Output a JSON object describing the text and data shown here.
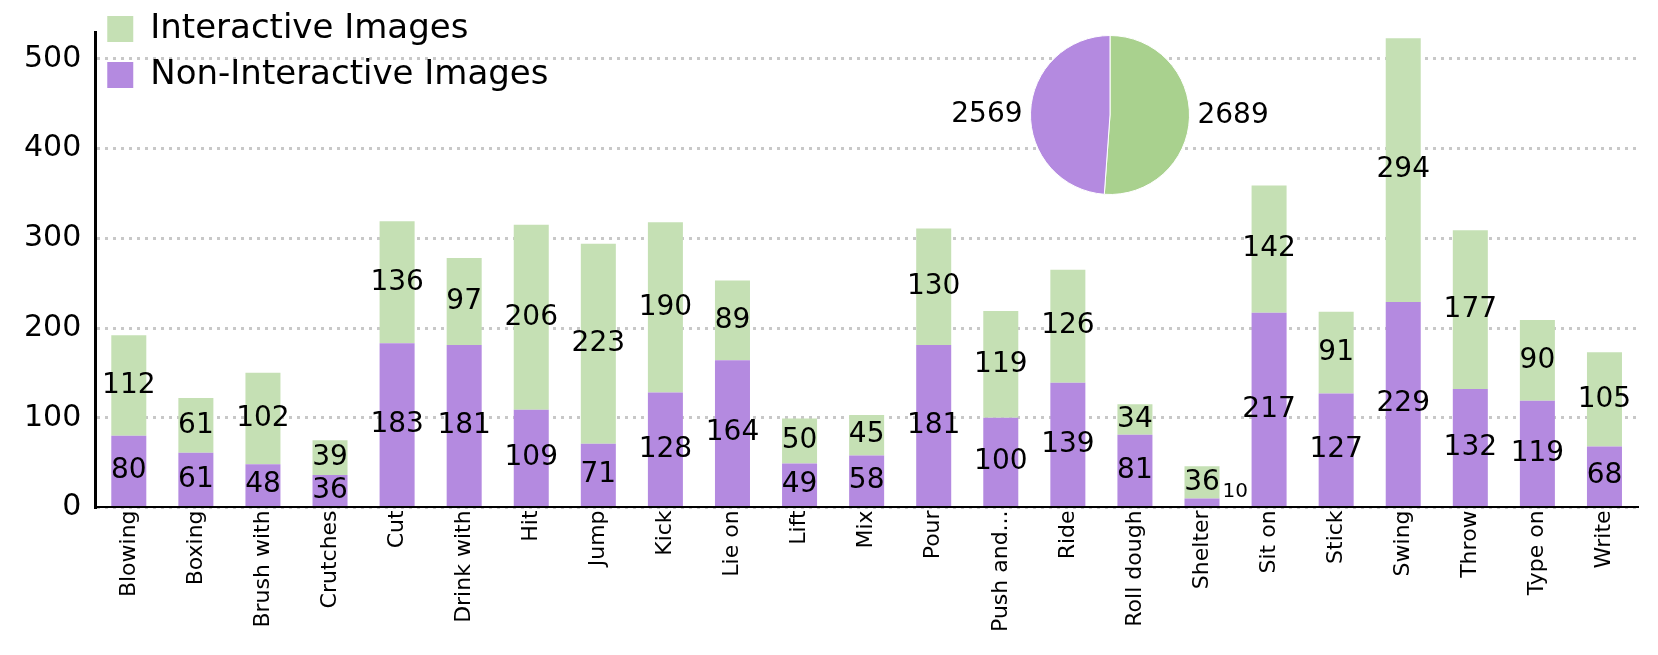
{
  "chart_data": [
    {
      "type": "bar",
      "stacked": true,
      "categories": [
        "Blowing",
        "Boxing",
        "Brush with",
        "Crutches",
        "Cut",
        "Drink with",
        "Hit",
        "Jump",
        "Kick",
        "Lie on",
        "Lift",
        "Mix",
        "Pour",
        "Push and...",
        "Ride",
        "Roll dough",
        "Shelter",
        "Sit on",
        "Stick",
        "Swing",
        "Throw",
        "Type on",
        "Write"
      ],
      "series": [
        {
          "name": "Non-Interactive Images",
          "color": "#b48ae0",
          "values": [
            80,
            61,
            48,
            36,
            183,
            181,
            109,
            71,
            128,
            164,
            49,
            58,
            181,
            100,
            139,
            81,
            10,
            217,
            127,
            229,
            132,
            119,
            68
          ]
        },
        {
          "name": "Interactive Images",
          "color": "#c5e0b4",
          "values": [
            112,
            61,
            102,
            39,
            136,
            97,
            206,
            223,
            190,
            89,
            50,
            45,
            130,
            119,
            126,
            34,
            36,
            142,
            91,
            294,
            177,
            90,
            105
          ]
        }
      ],
      "ylim": [
        0,
        530
      ],
      "yticks": [
        0,
        100,
        200,
        300,
        400,
        500
      ],
      "grid": "y",
      "legend": "top left",
      "data_labels": true
    },
    {
      "type": "pie",
      "categories": [
        null,
        null
      ],
      "values": [
        2689,
        2569
      ],
      "colors": [
        "#a9d18e",
        "#b48ae0"
      ],
      "data_labels": true
    }
  ]
}
